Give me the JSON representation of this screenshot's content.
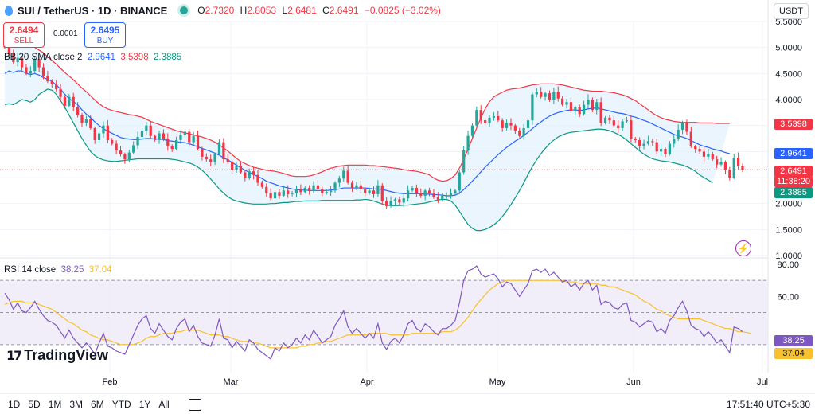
{
  "header": {
    "symbol_title": "SUI / TetherUS · 1D · BINANCE",
    "ohlc": [
      {
        "k": "O",
        "v": "2.7320"
      },
      {
        "k": "H",
        "v": "2.8053"
      },
      {
        "k": "L",
        "v": "2.6481"
      },
      {
        "k": "C",
        "v": "2.6491"
      },
      {
        "k": "",
        "v": "−0.0825 (−3.02%)"
      }
    ],
    "currency": "USDT"
  },
  "trade": {
    "sell_price": "2.6494",
    "sell_label": "SELL",
    "buy_price": "2.6495",
    "buy_label": "BUY",
    "spread": "0.0001"
  },
  "indicators": {
    "bb_name": "BB 20 SMA close 2",
    "bb_basis": "2.9641",
    "bb_upper": "3.5398",
    "bb_lower": "2.3885",
    "rsi_name": "RSI 14 close",
    "rsi_value": "38.25",
    "rsi_ma": "37.04"
  },
  "badges": {
    "upper": "3.5398",
    "basis": "2.9641",
    "last_price": "2.6491",
    "countdown": "11:38:20",
    "lower": "2.3885",
    "rsi": "38.25",
    "rsi_ma": "37.04"
  },
  "colors": {
    "up": "#26a69a",
    "down": "#f23645",
    "basis": "#2962ff",
    "upper": "#f23645",
    "lower": "#089981",
    "band_fill": "#e3f2fd",
    "rsi": "#7e57c2",
    "rsi_ma": "#f7c12d",
    "rsi_fill": "#ede7f6"
  },
  "logo_text": "TradingView",
  "bottom": {
    "timeframes": [
      "1D",
      "5D",
      "1M",
      "3M",
      "6M",
      "YTD",
      "1Y",
      "All"
    ],
    "clock": "17:51:40 UTC+5:30"
  },
  "chart_data": [
    {
      "type": "candlestick",
      "title": "SUI / TetherUS · 1D · BINANCE",
      "x_ticks": [
        "Feb",
        "Mar",
        "Apr",
        "May",
        "Jun",
        "Jul"
      ],
      "y_ticks": [
        "1.0000",
        "1.5000",
        "2.0000",
        "2.5000",
        "3.0000",
        "3.5000",
        "4.0000",
        "4.5000",
        "5.0000",
        "5.5000"
      ],
      "ylim": [
        1.0,
        5.5
      ],
      "grid": true,
      "close": [
        5.0,
        4.88,
        4.72,
        4.8,
        4.62,
        4.5,
        4.55,
        4.78,
        4.62,
        4.45,
        4.35,
        4.3,
        4.2,
        4.05,
        3.88,
        4.05,
        3.85,
        3.7,
        3.55,
        3.62,
        3.45,
        3.22,
        3.35,
        3.5,
        3.22,
        3.15,
        3.02,
        2.95,
        2.85,
        2.98,
        3.12,
        3.28,
        3.4,
        3.5,
        3.3,
        3.22,
        3.35,
        3.25,
        3.1,
        3.05,
        3.22,
        3.32,
        3.38,
        3.18,
        3.3,
        3.05,
        2.9,
        2.85,
        2.8,
        2.95,
        3.18,
        2.85,
        2.8,
        2.65,
        2.72,
        2.6,
        2.5,
        2.62,
        2.55,
        2.4,
        2.32,
        2.2,
        2.1,
        2.22,
        2.15,
        2.25,
        2.18,
        2.2,
        2.28,
        2.22,
        2.3,
        2.24,
        2.35,
        2.28,
        2.2,
        2.22,
        2.25,
        2.4,
        2.48,
        2.63,
        2.4,
        2.3,
        2.35,
        2.28,
        2.2,
        2.25,
        2.18,
        2.35,
        2.05,
        1.95,
        2.05,
        2.08,
        2.02,
        2.1,
        2.25,
        2.3,
        2.2,
        2.15,
        2.25,
        2.2,
        2.12,
        2.08,
        2.15,
        2.15,
        2.2,
        2.25,
        2.6,
        3.02,
        3.3,
        3.5,
        3.8,
        3.6,
        3.55,
        3.65,
        3.68,
        3.6,
        3.45,
        3.55,
        3.5,
        3.4,
        3.3,
        3.45,
        3.6,
        4.1,
        4.15,
        4.05,
        4.12,
        4.0,
        4.15,
        4.02,
        3.9,
        3.95,
        3.78,
        3.85,
        3.72,
        3.9,
        4.0,
        3.8,
        3.95,
        3.55,
        3.65,
        3.6,
        3.5,
        3.45,
        3.58,
        3.6,
        3.25,
        3.22,
        3.1,
        3.15,
        3.2,
        3.18,
        3.0,
        3.05,
        2.95,
        3.15,
        3.25,
        3.42,
        3.55,
        3.38,
        3.1,
        3.05,
        3.0,
        2.9,
        2.95,
        2.85,
        2.75,
        2.8,
        2.65,
        2.5,
        2.88,
        2.73,
        2.65
      ],
      "bb_basis": [
        4.5,
        4.55,
        4.52,
        4.55,
        4.55,
        4.5,
        4.48,
        4.5,
        4.47,
        4.42,
        4.39,
        4.35,
        4.28,
        4.2,
        4.1,
        4.02,
        3.96,
        3.9,
        3.8,
        3.72,
        3.65,
        3.57,
        3.5,
        3.44,
        3.39,
        3.35,
        3.31,
        3.27,
        3.25,
        3.24,
        3.23,
        3.23,
        3.24,
        3.25,
        3.25,
        3.24,
        3.24,
        3.23,
        3.21,
        3.2,
        3.19,
        3.18,
        3.17,
        3.15,
        3.12,
        3.09,
        3.06,
        3.03,
        3.0,
        2.97,
        2.93,
        2.88,
        2.84,
        2.79,
        2.74,
        2.69,
        2.64,
        2.6,
        2.56,
        2.52,
        2.48,
        2.43,
        2.4,
        2.37,
        2.34,
        2.32,
        2.3,
        2.28,
        2.27,
        2.26,
        2.26,
        2.25,
        2.25,
        2.25,
        2.25,
        2.25,
        2.26,
        2.27,
        2.28,
        2.3,
        2.3,
        2.3,
        2.3,
        2.3,
        2.3,
        2.29,
        2.28,
        2.28,
        2.27,
        2.25,
        2.23,
        2.21,
        2.2,
        2.19,
        2.19,
        2.19,
        2.19,
        2.19,
        2.18,
        2.18,
        2.17,
        2.17,
        2.16,
        2.15,
        2.15,
        2.16,
        2.2,
        2.27,
        2.35,
        2.43,
        2.52,
        2.61,
        2.7,
        2.78,
        2.86,
        2.94,
        3.01,
        3.08,
        3.14,
        3.2,
        3.25,
        3.31,
        3.37,
        3.44,
        3.51,
        3.57,
        3.63,
        3.68,
        3.72,
        3.75,
        3.77,
        3.79,
        3.8,
        3.8,
        3.79,
        3.8,
        3.82,
        3.83,
        3.84,
        3.82,
        3.8,
        3.78,
        3.76,
        3.74,
        3.73,
        3.71,
        3.68,
        3.66,
        3.63,
        3.6,
        3.57,
        3.53,
        3.49,
        3.45,
        3.41,
        3.37,
        3.33,
        3.3,
        3.28,
        3.25,
        3.21,
        3.17,
        3.13,
        3.1,
        3.08,
        3.05,
        3.03,
        3.01,
        2.98,
        2.96
      ],
      "bb_upper": [
        5.1,
        5.15,
        5.15,
        5.12,
        5.1,
        5.08,
        5.05,
        5.0,
        4.95,
        4.9,
        4.82,
        4.75,
        4.68,
        4.6,
        4.52,
        4.45,
        4.38,
        4.3,
        4.22,
        4.15,
        4.07,
        3.99,
        3.92,
        3.86,
        3.82,
        3.79,
        3.77,
        3.75,
        3.73,
        3.71,
        3.7,
        3.68,
        3.66,
        3.62,
        3.58,
        3.55,
        3.52,
        3.49,
        3.46,
        3.43,
        3.4,
        3.38,
        3.36,
        3.34,
        3.32,
        3.3,
        3.28,
        3.25,
        3.22,
        3.18,
        3.13,
        3.07,
        3.01,
        2.94,
        2.87,
        2.81,
        2.77,
        2.73,
        2.7,
        2.68,
        2.66,
        2.64,
        2.63,
        2.62,
        2.6,
        2.58,
        2.55,
        2.53,
        2.52,
        2.52,
        2.52,
        2.53,
        2.55,
        2.58,
        2.61,
        2.65,
        2.68,
        2.7,
        2.72,
        2.73,
        2.74,
        2.74,
        2.74,
        2.74,
        2.74,
        2.73,
        2.73,
        2.72,
        2.71,
        2.7,
        2.69,
        2.68,
        2.67,
        2.65,
        2.64,
        2.63,
        2.62,
        2.6,
        2.58,
        2.55,
        2.49,
        2.45,
        2.43,
        2.44,
        2.48,
        2.55,
        2.68,
        2.85,
        3.05,
        3.25,
        3.45,
        3.65,
        3.82,
        3.96,
        4.05,
        4.1,
        4.14,
        4.18,
        4.2,
        4.21,
        4.22,
        4.24,
        4.26,
        4.28,
        4.29,
        4.3,
        4.3,
        4.3,
        4.3,
        4.29,
        4.28,
        4.26,
        4.24,
        4.22,
        4.2,
        4.18,
        4.17,
        4.16,
        4.16,
        4.16,
        4.15,
        4.14,
        4.13,
        4.11,
        4.09,
        4.06,
        4.02,
        3.98,
        3.92,
        3.86,
        3.8,
        3.74,
        3.69,
        3.65,
        3.62,
        3.6,
        3.58,
        3.57,
        3.56,
        3.56,
        3.56,
        3.56,
        3.55,
        3.55,
        3.55,
        3.55,
        3.54,
        3.54,
        3.54,
        3.54
      ],
      "bb_lower": [
        3.9,
        3.92,
        3.9,
        3.95,
        4.0,
        3.98,
        3.95,
        4.0,
        4.1,
        4.15,
        4.2,
        4.18,
        4.1,
        3.98,
        3.85,
        3.7,
        3.55,
        3.4,
        3.25,
        3.12,
        3.0,
        2.92,
        2.87,
        2.84,
        2.82,
        2.81,
        2.81,
        2.82,
        2.83,
        2.84,
        2.85,
        2.86,
        2.86,
        2.86,
        2.86,
        2.86,
        2.86,
        2.86,
        2.86,
        2.85,
        2.84,
        2.82,
        2.8,
        2.78,
        2.75,
        2.7,
        2.64,
        2.56,
        2.47,
        2.38,
        2.28,
        2.2,
        2.13,
        2.08,
        2.05,
        2.03,
        2.01,
        2.0,
        1.99,
        1.99,
        1.99,
        1.99,
        2.0,
        2.0,
        2.01,
        2.02,
        2.02,
        2.03,
        2.04,
        2.04,
        2.05,
        2.05,
        2.05,
        2.05,
        2.06,
        2.06,
        2.06,
        2.06,
        2.06,
        2.06,
        2.06,
        2.06,
        2.07,
        2.07,
        2.08,
        2.07,
        2.05,
        2.02,
        1.99,
        1.97,
        1.96,
        1.96,
        1.96,
        1.97,
        1.97,
        1.98,
        1.99,
        2.0,
        2.01,
        2.03,
        2.05,
        2.07,
        2.08,
        2.08,
        2.05,
        1.97,
        1.85,
        1.72,
        1.6,
        1.52,
        1.48,
        1.48,
        1.5,
        1.54,
        1.59,
        1.66,
        1.75,
        1.86,
        1.98,
        2.11,
        2.25,
        2.4,
        2.56,
        2.71,
        2.84,
        2.96,
        3.06,
        3.15,
        3.22,
        3.28,
        3.32,
        3.35,
        3.37,
        3.38,
        3.39,
        3.4,
        3.41,
        3.42,
        3.43,
        3.43,
        3.42,
        3.4,
        3.37,
        3.33,
        3.28,
        3.22,
        3.15,
        3.08,
        3.01,
        2.95,
        2.9,
        2.86,
        2.84,
        2.82,
        2.81,
        2.8,
        2.78,
        2.76,
        2.74,
        2.71,
        2.67,
        2.62,
        2.55,
        2.5,
        2.45,
        2.4
      ],
      "rsi": [
        62.0,
        58.0,
        52.0,
        56.0,
        51.0,
        50.0,
        53.0,
        57.0,
        52.0,
        48.0,
        45.0,
        44.0,
        42.0,
        38.0,
        34.0,
        39.0,
        34.0,
        31.0,
        28.0,
        31.0,
        28.0,
        24.0,
        31.0,
        37.0,
        29.0,
        28.0,
        26.0,
        25.0,
        24.0,
        30.0,
        36.0,
        42.0,
        46.0,
        48.0,
        40.0,
        37.0,
        43.0,
        39.0,
        35.0,
        33.0,
        40.0,
        44.0,
        46.0,
        38.0,
        42.0,
        35.0,
        31.0,
        30.0,
        29.0,
        36.0,
        46.0,
        34.0,
        33.0,
        28.0,
        32.0,
        29.0,
        26.0,
        33.0,
        31.0,
        27.0,
        25.0,
        23.0,
        21.0,
        28.0,
        26.0,
        31.0,
        28.0,
        30.0,
        34.0,
        31.0,
        36.0,
        33.0,
        39.0,
        35.0,
        31.0,
        33.0,
        35.0,
        42.0,
        46.0,
        51.0,
        41.0,
        37.0,
        40.0,
        37.0,
        34.0,
        37.0,
        34.0,
        43.0,
        31.0,
        27.0,
        32.0,
        34.0,
        31.0,
        36.0,
        43.0,
        45.0,
        40.0,
        38.0,
        43.0,
        41.0,
        38.0,
        36.0,
        40.0,
        40.0,
        42.0,
        45.0,
        56.0,
        70.0,
        76.0,
        77.0,
        79.0,
        74.0,
        72.0,
        73.0,
        74.0,
        71.0,
        66.0,
        69.0,
        68.0,
        64.0,
        60.0,
        64.0,
        68.0,
        76.0,
        77.0,
        75.0,
        77.0,
        73.0,
        75.0,
        72.0,
        69.0,
        70.0,
        66.0,
        68.0,
        64.0,
        68.0,
        70.0,
        64.0,
        67.0,
        55.0,
        57.0,
        56.0,
        53.0,
        52.0,
        55.0,
        56.0,
        45.0,
        44.0,
        41.0,
        43.0,
        45.0,
        44.0,
        38.0,
        40.0,
        37.0,
        45.0,
        48.0,
        53.0,
        57.0,
        51.0,
        42.0,
        40.0,
        39.0,
        35.0,
        38.0,
        35.0,
        31.0,
        33.0,
        29.0,
        25.0,
        41.0,
        40.0,
        38.0
      ],
      "rsi_ma": [
        55.0,
        56.0,
        57.0,
        57.0,
        57.0,
        56.0,
        56.0,
        56.0,
        55.0,
        54.0,
        53.0,
        52.0,
        50.0,
        48.0,
        46.0,
        44.0,
        43.0,
        41.0,
        39.0,
        38.0,
        36.0,
        35.0,
        34.0,
        33.0,
        33.0,
        32.0,
        31.0,
        30.0,
        30.0,
        30.0,
        30.0,
        31.0,
        32.0,
        34.0,
        35.0,
        35.0,
        36.0,
        37.0,
        37.0,
        37.0,
        38.0,
        38.0,
        39.0,
        39.0,
        39.0,
        39.0,
        38.0,
        37.0,
        36.0,
        36.0,
        36.0,
        35.0,
        35.0,
        34.0,
        33.0,
        32.0,
        32.0,
        32.0,
        31.0,
        31.0,
        30.0,
        29.0,
        28.0,
        28.0,
        28.0,
        28.0,
        28.0,
        28.0,
        28.0,
        29.0,
        29.0,
        30.0,
        30.0,
        31.0,
        31.0,
        32.0,
        32.0,
        33.0,
        34.0,
        35.0,
        36.0,
        36.0,
        36.0,
        36.0,
        36.0,
        37.0,
        37.0,
        37.0,
        37.0,
        37.0,
        36.0,
        36.0,
        36.0,
        36.0,
        36.0,
        37.0,
        37.0,
        37.0,
        37.0,
        37.0,
        37.0,
        37.0,
        38.0,
        38.0,
        38.0,
        39.0,
        41.0,
        44.0,
        47.0,
        51.0,
        55.0,
        58.0,
        61.0,
        64.0,
        66.0,
        68.0,
        69.0,
        70.0,
        70.0,
        70.0,
        70.0,
        70.0,
        70.0,
        70.0,
        70.0,
        70.0,
        70.0,
        70.0,
        70.0,
        70.0,
        70.0,
        69.0,
        69.0,
        69.0,
        68.0,
        68.0,
        68.0,
        68.0,
        68.0,
        67.0,
        67.0,
        66.0,
        66.0,
        65.0,
        64.0,
        63.0,
        62.0,
        61.0,
        59.0,
        57.0,
        56.0,
        54.0,
        52.0,
        51.0,
        49.0,
        48.0,
        47.0,
        46.0,
        46.0,
        46.0,
        46.0,
        46.0,
        46.0,
        45.0,
        44.0,
        43.0,
        42.0,
        41.0,
        40.0,
        40.0,
        39.0,
        38.0,
        38.0,
        37.5,
        37.0
      ],
      "rsi_ylim": [
        20,
        80
      ],
      "rsi_ticks": [
        "60.00",
        "80.00"
      ],
      "rsi_levels": [
        70,
        50,
        30
      ]
    }
  ]
}
